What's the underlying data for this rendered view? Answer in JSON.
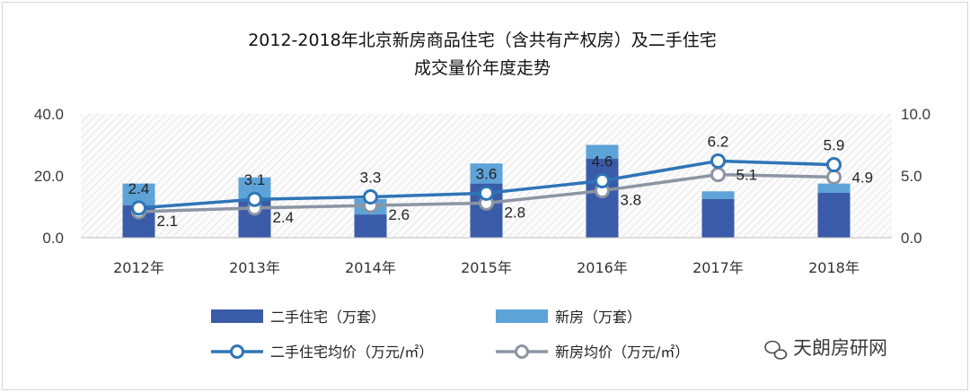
{
  "chart_data": {
    "type": "bar",
    "title_line1": "2012-2018年北京新房商品住宅（含共有产权房）及二手住宅",
    "title_line2": "成交量价年度走势",
    "categories": [
      "2012年",
      "2013年",
      "2014年",
      "2015年",
      "2016年",
      "2017年",
      "2018年"
    ],
    "y_left": {
      "ylim": [
        0,
        40
      ],
      "ticks": [
        "0.0",
        "20.0",
        "40.0"
      ]
    },
    "y_right": {
      "ylim": [
        0,
        10
      ],
      "ticks": [
        "0.0",
        "5.0",
        "10.0"
      ]
    },
    "bar_series": [
      {
        "name": "二手住宅（万套）",
        "color": "#3a5ba8",
        "values": [
          10.5,
          12.5,
          7.5,
          17.5,
          25.5,
          12.5,
          14.5
        ]
      },
      {
        "name": "新房（万套）",
        "color": "#5ea3d8",
        "values": [
          7.0,
          7.0,
          5.0,
          6.5,
          4.5,
          2.5,
          3.0
        ]
      }
    ],
    "line_series": [
      {
        "name": "二手住宅均价（万元/㎡）",
        "color": "#2e75b6",
        "values": [
          2.4,
          3.1,
          3.3,
          3.6,
          4.6,
          6.2,
          5.9
        ],
        "labels": [
          "2.4",
          "3.1",
          "3.3",
          "3.6",
          "4.6",
          "6.2",
          "5.9"
        ]
      },
      {
        "name": "新房均价（万元/㎡）",
        "color": "#8c95a3",
        "values": [
          2.1,
          2.4,
          2.6,
          2.8,
          3.8,
          5.1,
          4.9
        ],
        "labels": [
          "2.1",
          "2.4",
          "2.6",
          "2.8",
          "3.8",
          "5.1",
          "4.9"
        ]
      }
    ],
    "grid": false,
    "legend": "bottom"
  },
  "watermark": "天朗房研网"
}
